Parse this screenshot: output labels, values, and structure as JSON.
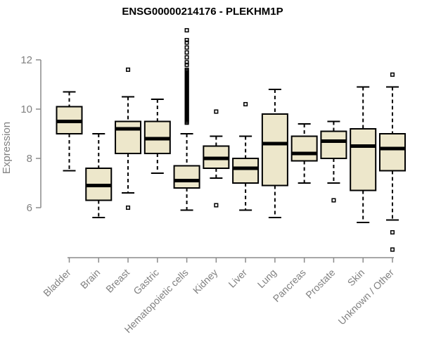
{
  "title": "ENSG00000214176 - PLEKHM1P",
  "colors": {
    "box_fill": "#EDE7CB",
    "box_stroke": "#000000",
    "median_color": "#000000",
    "whisker_color": "#000000",
    "axis_line": "#8C8C8C",
    "axis_text": "#808080",
    "title_text": "#000000",
    "background": "#FFFFFF"
  },
  "chart_data": {
    "type": "boxplot",
    "title": "ENSG00000214176 - PLEKHM1P",
    "xlabel": "",
    "ylabel": "Expression",
    "ylim": [
      3.9,
      13.5
    ],
    "yticks": [
      6,
      8,
      10,
      12
    ],
    "grid": false,
    "legend": null,
    "categories": [
      "Bladder",
      "Brain",
      "Breast",
      "Gastric",
      "Hematopoietic cells",
      "Kidney",
      "Liver",
      "Lung",
      "Pancreas",
      "Prostate",
      "Skin",
      "Unknown / Other"
    ],
    "series": [
      {
        "name": "Bladder",
        "whisker_low": 7.5,
        "q1": 9.0,
        "median": 9.5,
        "q3": 10.1,
        "whisker_high": 10.7,
        "outliers": []
      },
      {
        "name": "Brain",
        "whisker_low": 5.6,
        "q1": 6.3,
        "median": 6.9,
        "q3": 7.6,
        "whisker_high": 9.0,
        "outliers": []
      },
      {
        "name": "Breast",
        "whisker_low": 6.6,
        "q1": 8.2,
        "median": 9.2,
        "q3": 9.5,
        "whisker_high": 10.5,
        "outliers": [
          11.6,
          6.0
        ]
      },
      {
        "name": "Gastric",
        "whisker_low": 7.4,
        "q1": 8.2,
        "median": 8.8,
        "q3": 9.5,
        "whisker_high": 10.4,
        "outliers": []
      },
      {
        "name": "Hematopoietic cells",
        "whisker_low": 5.9,
        "q1": 6.8,
        "median": 7.1,
        "q3": 7.7,
        "whisker_high": 9.0,
        "outliers": [
          13.2,
          12.8,
          12.7,
          12.5,
          12.3,
          12.1,
          11.9,
          11.8,
          11.6,
          11.55,
          11.5,
          11.45,
          11.4,
          11.35,
          11.3,
          11.25,
          11.2,
          11.15,
          11.1,
          11.05,
          11.0,
          10.95,
          10.9,
          10.85,
          10.8,
          10.75,
          10.7,
          10.65,
          10.6,
          10.55,
          10.5,
          10.45,
          10.4,
          10.35,
          10.3,
          10.25,
          10.2,
          10.15,
          10.1,
          10.05,
          10.0,
          9.95,
          9.9,
          9.85,
          9.8,
          9.75,
          9.7,
          9.65,
          9.6,
          9.55,
          9.5,
          9.45
        ]
      },
      {
        "name": "Kidney",
        "whisker_low": 7.2,
        "q1": 7.6,
        "median": 8.0,
        "q3": 8.5,
        "whisker_high": 8.9,
        "outliers": [
          9.9,
          6.1
        ]
      },
      {
        "name": "Liver",
        "whisker_low": 5.9,
        "q1": 7.0,
        "median": 7.6,
        "q3": 8.0,
        "whisker_high": 8.9,
        "outliers": [
          10.2
        ]
      },
      {
        "name": "Lung",
        "whisker_low": 5.6,
        "q1": 6.9,
        "median": 8.6,
        "q3": 9.8,
        "whisker_high": 10.8,
        "outliers": []
      },
      {
        "name": "Pancreas",
        "whisker_low": 7.0,
        "q1": 7.9,
        "median": 8.2,
        "q3": 8.9,
        "whisker_high": 9.4,
        "outliers": []
      },
      {
        "name": "Prostate",
        "whisker_low": 7.0,
        "q1": 8.0,
        "median": 8.7,
        "q3": 9.1,
        "whisker_high": 9.5,
        "outliers": [
          6.3
        ]
      },
      {
        "name": "Skin",
        "whisker_low": 5.4,
        "q1": 6.7,
        "median": 8.5,
        "q3": 9.2,
        "whisker_high": 10.9,
        "outliers": []
      },
      {
        "name": "Unknown / Other",
        "whisker_low": 5.5,
        "q1": 7.5,
        "median": 8.4,
        "q3": 9.0,
        "whisker_high": 10.9,
        "outliers": [
          11.4,
          5.0,
          4.3
        ]
      }
    ]
  }
}
